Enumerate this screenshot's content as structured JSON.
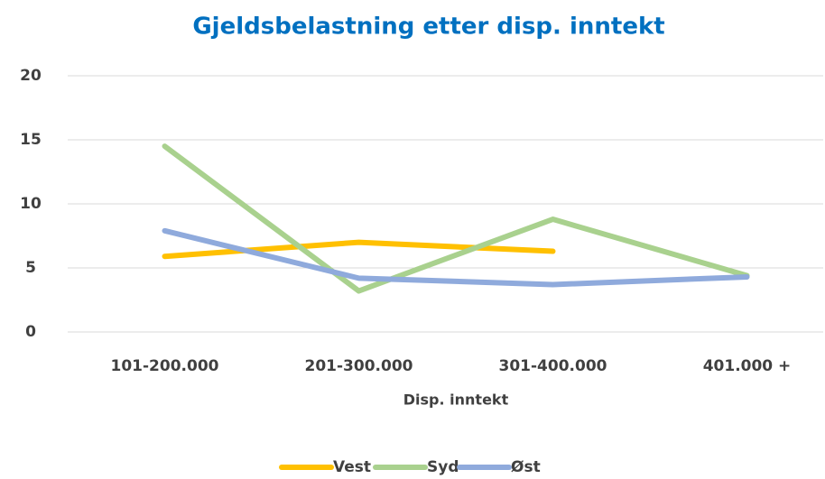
{
  "chart_data": {
    "type": "line",
    "title": "Gjeldsbelastning etter disp. inntekt",
    "x_label": "Disp. inntekt",
    "categories": [
      "101-200.000",
      "201-300.000",
      "301-400.000",
      "401.000 +"
    ],
    "series": [
      {
        "name": "Vest",
        "color": "#ffc000",
        "values": [
          5.9,
          7.0,
          6.3,
          null
        ]
      },
      {
        "name": "Syd",
        "color": "#a9d18e",
        "values": [
          14.5,
          3.2,
          8.8,
          4.4
        ]
      },
      {
        "name": "Øst",
        "color": "#8faadc",
        "values": [
          7.9,
          4.2,
          3.7,
          4.3
        ]
      }
    ],
    "ylim": [
      0,
      20
    ],
    "yticks": [
      0,
      5,
      10,
      15,
      20
    ],
    "grid": true,
    "legend": "bottom"
  }
}
